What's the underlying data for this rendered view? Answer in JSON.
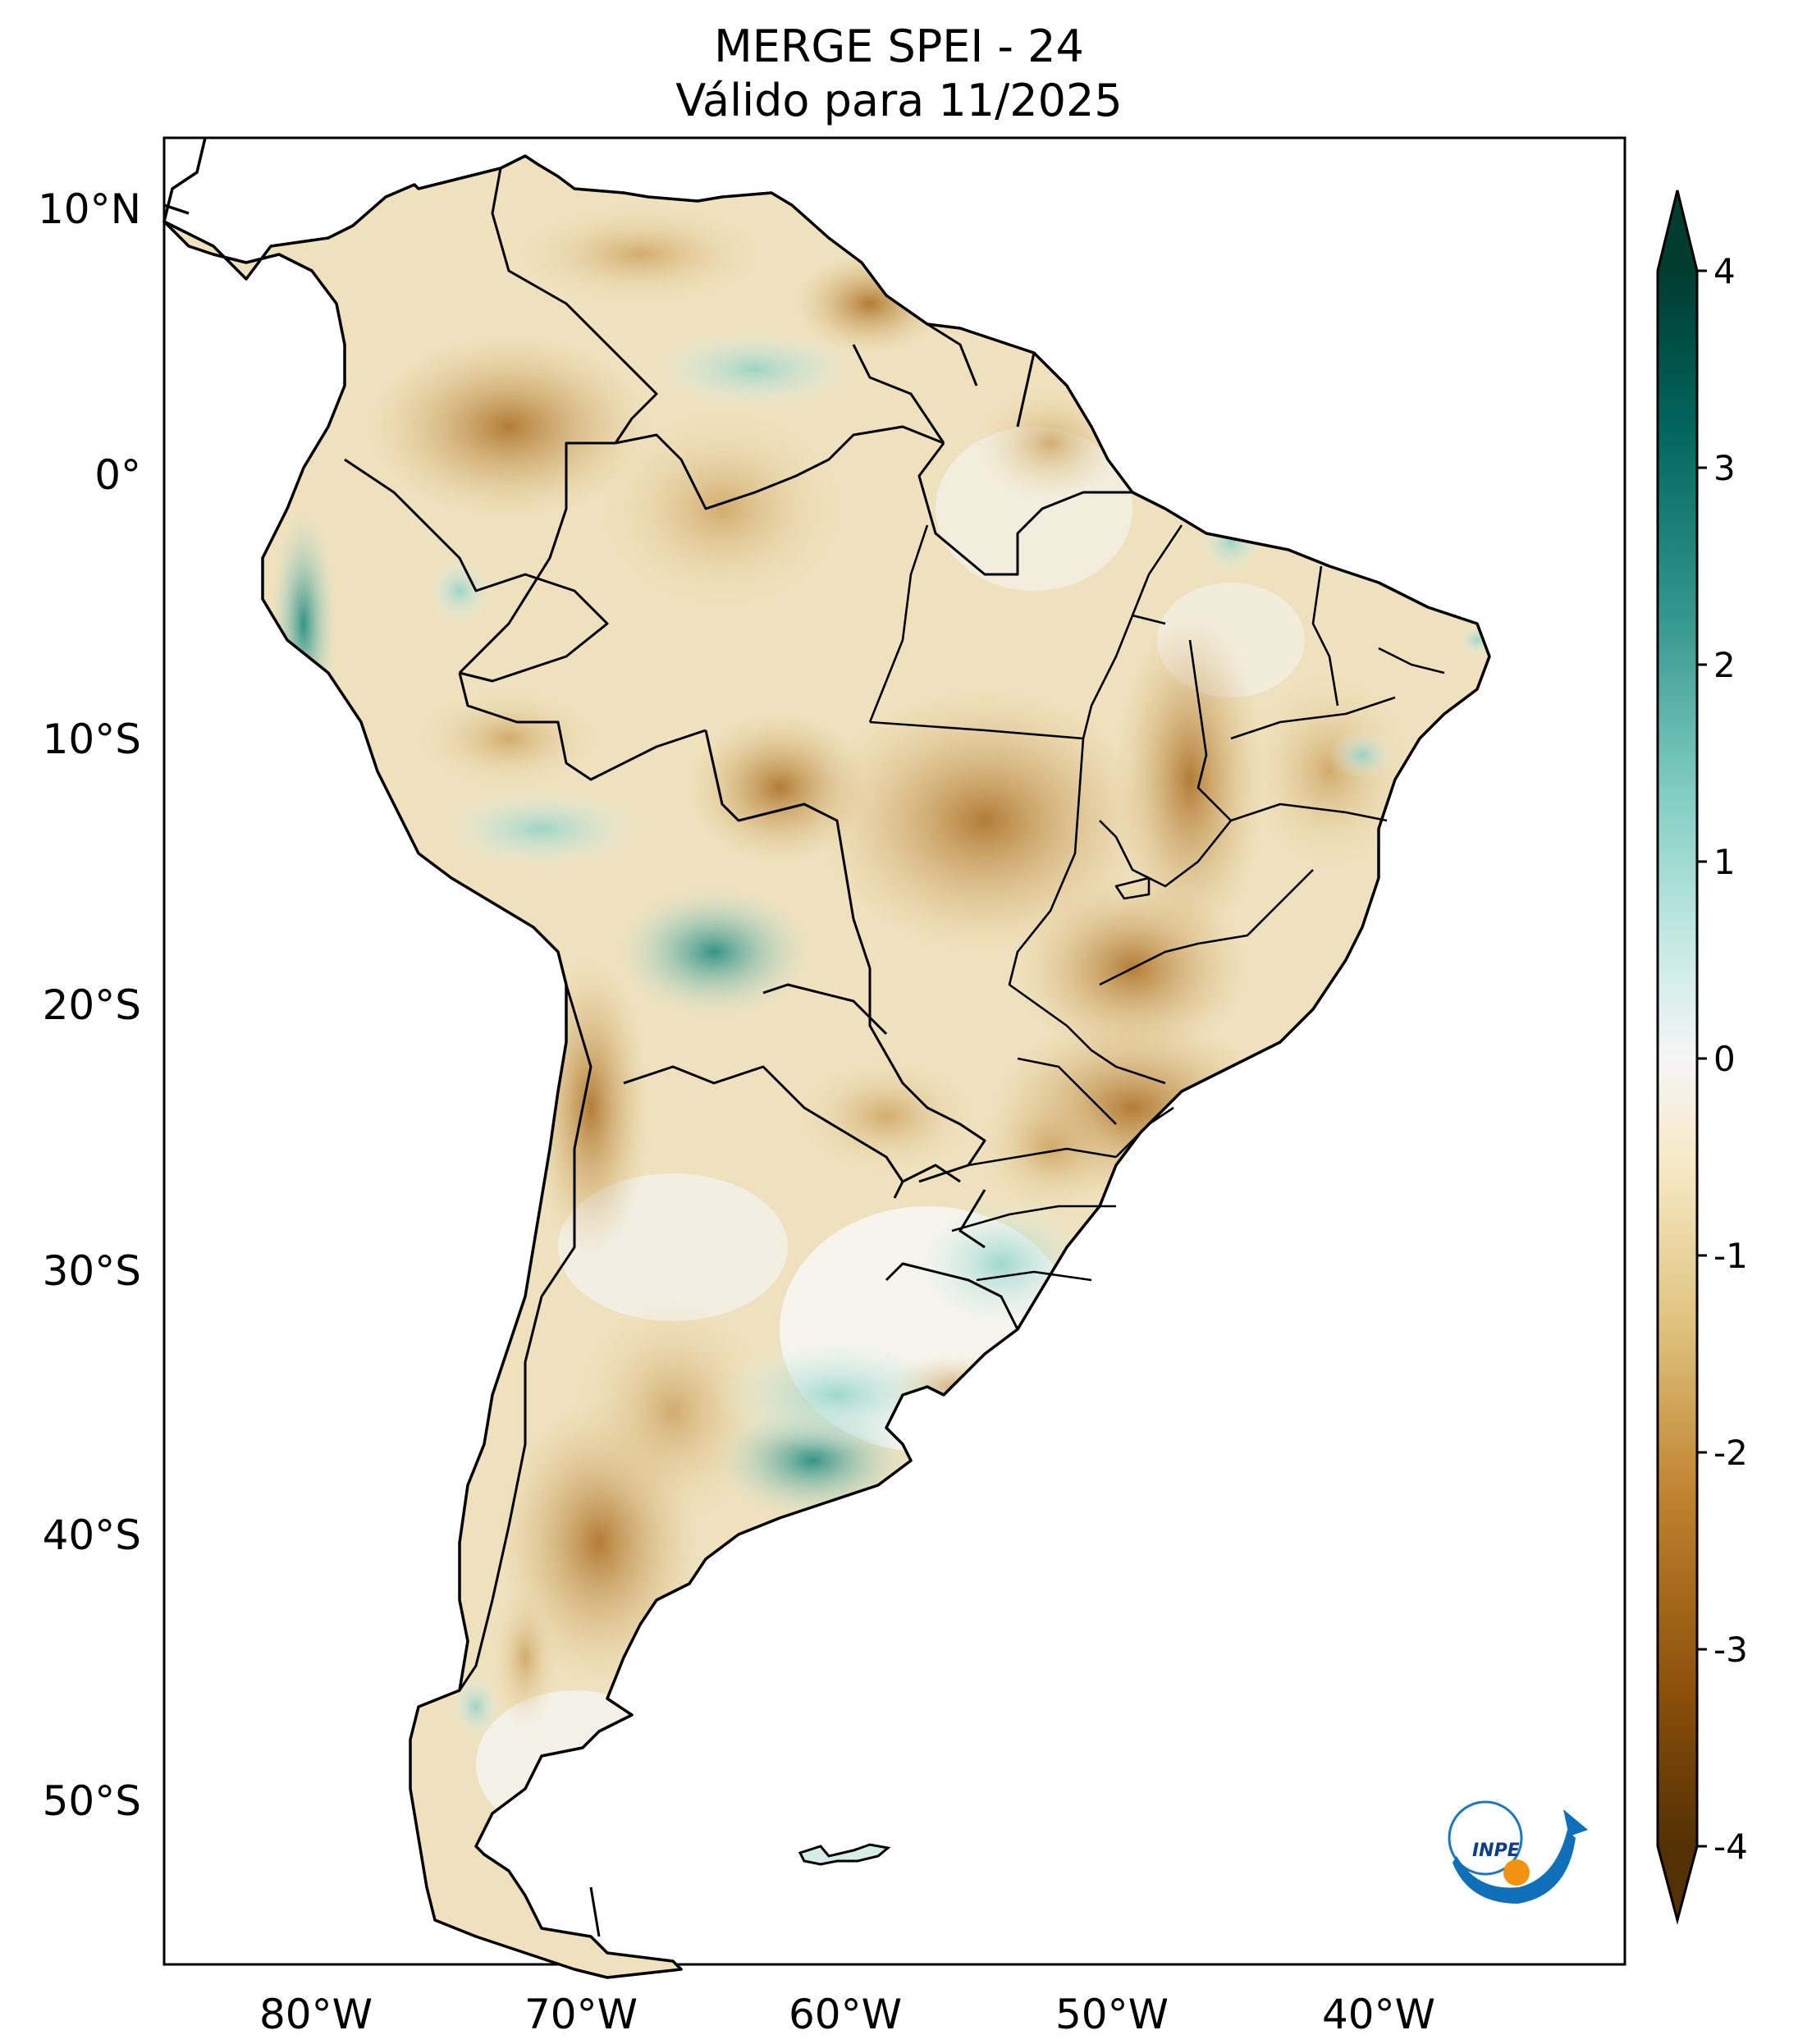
{
  "title": {
    "line1": "MERGE   SPEI - 24",
    "line2": "Válido para 11/2025"
  },
  "map": {
    "region": "South America",
    "variable": "SPEI - 24",
    "lat_ticks": [
      "10°N",
      "0°",
      "10°S",
      "20°S",
      "30°S",
      "40°S",
      "50°S"
    ],
    "lon_ticks": [
      "80°W",
      "70°W",
      "60°W",
      "50°W",
      "40°W"
    ]
  },
  "colorbar": {
    "ticks": [
      "4",
      "3",
      "2",
      "1",
      "0",
      "-1",
      "-2",
      "-3",
      "-4"
    ],
    "colors": {
      "wet_max": "#003c30",
      "wet_high": "#01665e",
      "wet_mid": "#35978f",
      "wet_low": "#80cdc1",
      "wet_min": "#c7eae5",
      "neutral": "#f5f5f5",
      "dry_min": "#f6e8c3",
      "dry_low": "#dfc27d",
      "dry_mid": "#bf812d",
      "dry_high": "#8c510a",
      "dry_max": "#543005"
    }
  },
  "logo": {
    "text": "INPE"
  }
}
